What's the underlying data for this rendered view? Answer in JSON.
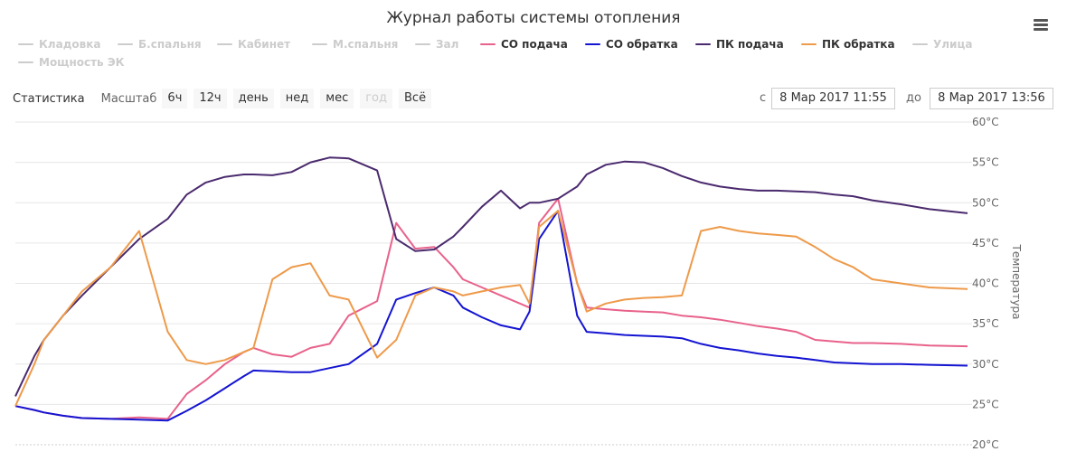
{
  "title": "Журнал работы системы отопления",
  "menu_icon": "hamburger-menu-icon",
  "legend": [
    {
      "label": "Кладовка",
      "color": "#cccccc",
      "visible": false
    },
    {
      "label": "Б.спальня",
      "color": "#cccccc",
      "visible": false
    },
    {
      "label": "Кабинет",
      "color": "#cccccc",
      "visible": false
    },
    {
      "label": "М.спальня",
      "color": "#cccccc",
      "visible": false
    },
    {
      "label": "Зал",
      "color": "#cccccc",
      "visible": false
    },
    {
      "label": "СО подача",
      "color": "#e8628b",
      "visible": true
    },
    {
      "label": "СО обратка",
      "color": "#1414d2",
      "visible": true
    },
    {
      "label": "ПК подача",
      "color": "#4a2a6e",
      "visible": true
    },
    {
      "label": "ПК обратка",
      "color": "#ee9a4a",
      "visible": true
    },
    {
      "label": "Улица",
      "color": "#cccccc",
      "visible": false
    },
    {
      "label": "Мощность ЭК",
      "color": "#cccccc",
      "visible": false
    }
  ],
  "range_selector": {
    "stats_label": "Статистика",
    "zoom_label": "Масштаб",
    "buttons": [
      {
        "label": "6ч",
        "disabled": false
      },
      {
        "label": "12ч",
        "disabled": false
      },
      {
        "label": "день",
        "disabled": false
      },
      {
        "label": "нед",
        "disabled": false
      },
      {
        "label": "мес",
        "disabled": false
      },
      {
        "label": "год",
        "disabled": true
      },
      {
        "label": "Всё",
        "disabled": false
      }
    ],
    "from_label": "с",
    "from_value": "8 Мар 2017 11:55",
    "to_label": "до",
    "to_value": "8 Мар 2017 13:56"
  },
  "chart_data": {
    "type": "line",
    "title": "Журнал работы системы отопления",
    "xlabel": "",
    "ylabel": "Температура",
    "x_range": [
      "8 Мар 2017 11:55",
      "8 Мар 2017 13:56"
    ],
    "x": [
      0,
      2,
      3,
      5,
      7,
      10,
      13,
      16,
      18,
      20,
      22,
      24,
      25,
      27,
      29,
      31,
      33,
      35,
      38,
      40,
      42,
      44,
      46,
      47,
      49,
      51,
      53,
      54,
      55,
      57,
      59,
      60,
      62,
      64,
      66,
      68,
      70,
      72,
      74,
      76,
      78,
      80,
      82,
      84,
      86,
      88,
      90,
      93,
      96,
      100
    ],
    "ylim": [
      20,
      60
    ],
    "yticks": [
      "20°C",
      "25°C",
      "30°C",
      "35°C",
      "40°C",
      "45°C",
      "50°C",
      "55°C",
      "60°C"
    ],
    "grid": true,
    "series": [
      {
        "name": "СО подача",
        "color": "#e8628b",
        "values": [
          24.8,
          24.3,
          24.0,
          23.6,
          23.3,
          23.2,
          23.4,
          23.2,
          26.3,
          28.0,
          30.0,
          31.5,
          32.0,
          31.2,
          30.9,
          32.0,
          32.5,
          36.0,
          37.8,
          47.5,
          44.3,
          44.5,
          42.0,
          40.5,
          39.5,
          38.5,
          37.5,
          37.0,
          47.5,
          50.5,
          40.0,
          37.0,
          36.8,
          36.6,
          36.5,
          36.4,
          36.0,
          35.8,
          35.5,
          35.1,
          34.7,
          34.4,
          34.0,
          33.0,
          32.8,
          32.6,
          32.6,
          32.5,
          32.3,
          32.2
        ]
      },
      {
        "name": "СО обратка",
        "color": "#1414d2",
        "values": [
          24.8,
          24.3,
          24.0,
          23.6,
          23.3,
          23.2,
          23.1,
          23.0,
          24.2,
          25.5,
          27.0,
          28.5,
          29.2,
          29.1,
          29.0,
          29.0,
          29.5,
          30.0,
          32.5,
          38.0,
          38.8,
          39.5,
          38.5,
          37.0,
          35.8,
          34.8,
          34.3,
          36.5,
          45.5,
          49.0,
          36.0,
          34.0,
          33.8,
          33.6,
          33.5,
          33.4,
          33.2,
          32.5,
          32.0,
          31.7,
          31.3,
          31.0,
          30.8,
          30.5,
          30.2,
          30.1,
          30.0,
          30.0,
          29.9,
          29.8
        ]
      },
      {
        "name": "ПК подача",
        "color": "#4a2a6e",
        "values": [
          26.0,
          31.0,
          33.0,
          36.0,
          38.5,
          42.0,
          45.5,
          48.0,
          51.0,
          52.5,
          53.2,
          53.5,
          53.5,
          53.4,
          53.8,
          55.0,
          55.6,
          55.5,
          54.0,
          45.5,
          44.0,
          44.2,
          45.8,
          47.0,
          49.5,
          51.5,
          49.3,
          50.0,
          50.0,
          50.5,
          52.0,
          53.5,
          54.7,
          55.1,
          55.0,
          54.3,
          53.3,
          52.5,
          52.0,
          51.7,
          51.5,
          51.5,
          51.4,
          51.3,
          51.0,
          50.8,
          50.3,
          49.8,
          49.2,
          48.7
        ]
      },
      {
        "name": "ПК обратка",
        "color": "#ee9a4a",
        "values": [
          24.8,
          30.0,
          33.0,
          36.0,
          39.0,
          42.0,
          46.5,
          34.0,
          30.5,
          30.0,
          30.5,
          31.5,
          32.0,
          40.5,
          42.0,
          42.5,
          38.5,
          38.0,
          30.8,
          33.0,
          38.5,
          39.5,
          39.0,
          38.5,
          39.0,
          39.5,
          39.8,
          37.5,
          47.0,
          49.0,
          40.0,
          36.5,
          37.5,
          38.0,
          38.2,
          38.3,
          38.5,
          46.5,
          47.0,
          46.5,
          46.2,
          46.0,
          45.8,
          44.5,
          43.0,
          42.0,
          40.5,
          40.0,
          39.5,
          39.3
        ]
      }
    ]
  }
}
